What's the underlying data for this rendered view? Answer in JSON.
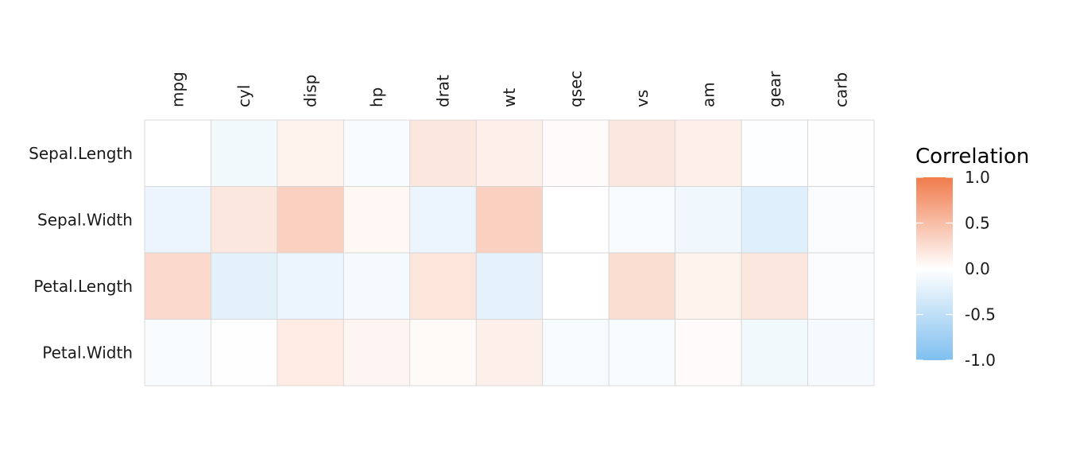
{
  "chart_data": {
    "type": "heatmap",
    "title": "",
    "xlabel": "",
    "ylabel": "",
    "x_categories": [
      "mpg",
      "cyl",
      "disp",
      "hp",
      "drat",
      "wt",
      "qsec",
      "vs",
      "am",
      "gear",
      "carb"
    ],
    "y_categories": [
      "Sepal.Length",
      "Sepal.Width",
      "Petal.Length",
      "Petal.Width"
    ],
    "values": [
      [
        0.0,
        -0.1,
        0.1,
        -0.05,
        0.18,
        0.12,
        0.03,
        0.18,
        0.12,
        -0.02,
        -0.01
      ],
      [
        -0.15,
        0.18,
        0.35,
        0.06,
        -0.15,
        0.35,
        0.0,
        -0.06,
        -0.12,
        -0.25,
        -0.04
      ],
      [
        0.28,
        -0.22,
        -0.15,
        -0.08,
        0.2,
        -0.2,
        0.0,
        0.25,
        0.1,
        0.18,
        -0.04
      ],
      [
        -0.05,
        -0.01,
        0.15,
        0.08,
        0.04,
        0.12,
        -0.07,
        -0.07,
        0.03,
        -0.1,
        -0.08
      ]
    ],
    "color_scale": {
      "low": "#7FBFEF",
      "mid": "#FFFFFF",
      "high": "#F07B4C",
      "limits": [
        -1.0,
        1.0
      ]
    },
    "grid_line_color": "#D3D3D3",
    "legend": {
      "title": "Correlation",
      "ticks": [
        "1.0",
        "0.5",
        "0.0",
        "-0.5",
        "-1.0"
      ],
      "tick_values": [
        1.0,
        0.5,
        0.0,
        -0.5,
        -1.0
      ],
      "position": "right"
    }
  }
}
